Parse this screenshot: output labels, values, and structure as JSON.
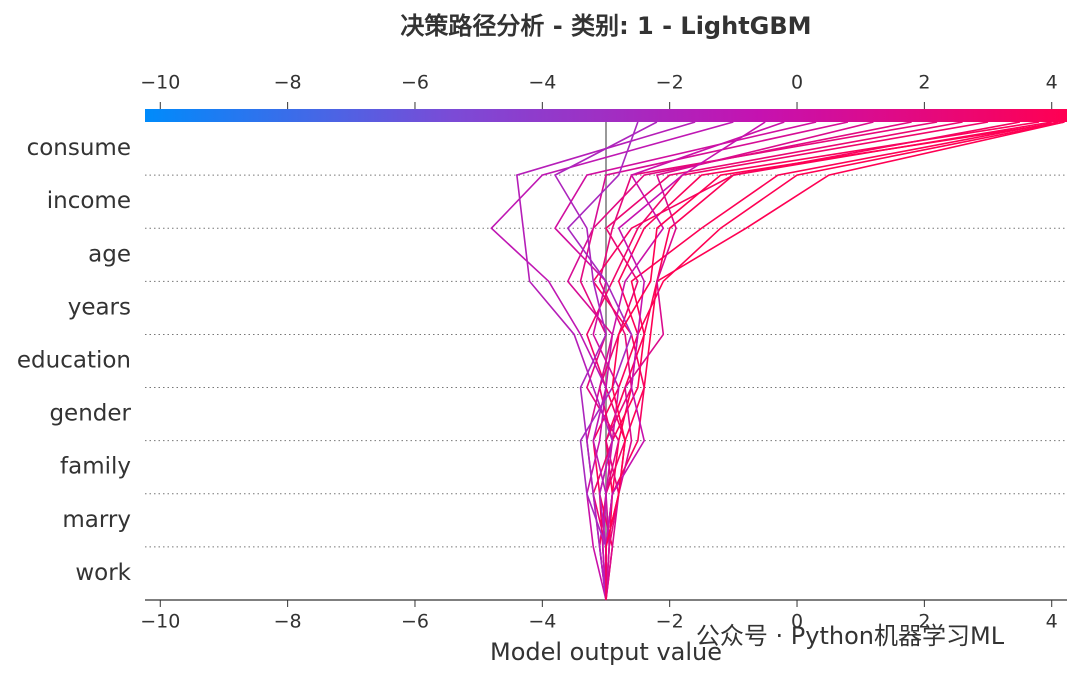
{
  "chart_data": {
    "type": "decision",
    "title": "决策路径分析 - 类别: 1 - LightGBM",
    "x_label": "Model output value",
    "watermark": "公众号 · Python机器学习ML",
    "categories": [
      "consume",
      "income",
      "age",
      "years",
      "education",
      "gender",
      "family",
      "marry",
      "work"
    ],
    "base_value": -3,
    "base_color": "#999999",
    "colormap": [
      "#008bfb",
      "#7b4bd6",
      "#c512b0",
      "#ff0052"
    ],
    "xlim": [
      -10.24,
      4.24
    ],
    "xticks": [
      {
        "value": -10,
        "label": "−10"
      },
      {
        "value": -8,
        "label": "−8"
      },
      {
        "value": -6,
        "label": "−6"
      },
      {
        "value": -4,
        "label": "−4"
      },
      {
        "value": -2,
        "label": "−2"
      },
      0,
      2,
      4
    ],
    "series": [
      {
        "values": [
          4.2,
          0.0,
          -1.2,
          -2.1,
          -2.5,
          -2.6,
          -2.8,
          -2.9,
          -2.95
        ]
      },
      {
        "values": [
          4.2,
          0.5,
          -0.8,
          -2.2,
          -2.3,
          -2.4,
          -2.7,
          -2.8,
          -3.0
        ]
      },
      {
        "values": [
          4.1,
          -0.3,
          -1.5,
          -2.6,
          -2.4,
          -2.5,
          -2.9,
          -3.1,
          -3.05
        ]
      },
      {
        "values": [
          4.0,
          -1.0,
          -2.0,
          -2.2,
          -2.4,
          -2.7,
          -3.0,
          -2.9,
          -3.0
        ]
      },
      {
        "values": [
          3.8,
          -1.5,
          -2.4,
          -2.8,
          -2.5,
          -2.8,
          -3.2,
          -3.1,
          -2.9
        ]
      },
      {
        "values": [
          3.5,
          -1.0,
          -2.6,
          -3.2,
          -2.6,
          -2.4,
          -2.5,
          -2.9,
          -3.0
        ]
      },
      {
        "values": [
          3.0,
          -1.8,
          -2.5,
          -2.9,
          -3.3,
          -3.0,
          -2.7,
          -3.0,
          -3.1
        ]
      },
      {
        "values": [
          2.6,
          -2.0,
          -3.0,
          -2.5,
          -2.8,
          -3.1,
          -2.9,
          -3.2,
          -3.0
        ]
      },
      {
        "values": [
          2.2,
          -2.6,
          -2.9,
          -3.1,
          -2.7,
          -2.6,
          -3.0,
          -2.8,
          -2.95
        ]
      },
      {
        "values": [
          1.8,
          -2.4,
          -3.2,
          -3.4,
          -3.0,
          -3.3,
          -2.8,
          -3.0,
          -3.05
        ]
      },
      {
        "values": [
          1.2,
          -2.2,
          -1.9,
          -2.2,
          -2.1,
          -2.7,
          -2.6,
          -2.8,
          -2.9
        ]
      },
      {
        "values": [
          0.8,
          -3.0,
          -3.2,
          -3.6,
          -2.9,
          -3.1,
          -3.3,
          -3.2,
          -3.1
        ]
      },
      {
        "values": [
          0.3,
          -3.3,
          -3.8,
          -3.0,
          -3.2,
          -2.8,
          -2.9,
          -3.0,
          -2.95
        ]
      },
      {
        "values": [
          -0.2,
          -2.6,
          -2.1,
          -2.7,
          -2.9,
          -3.0,
          -3.1,
          -3.3,
          -3.2
        ]
      },
      {
        "values": [
          -0.5,
          -1.8,
          -2.8,
          -2.4,
          -2.5,
          -2.6,
          -2.4,
          -2.9,
          -3.0
        ]
      },
      {
        "values": [
          -1.0,
          -4.0,
          -4.8,
          -3.9,
          -3.4,
          -3.0,
          -3.2,
          -3.0,
          -3.05
        ]
      },
      {
        "values": [
          -1.6,
          -4.4,
          -4.3,
          -4.2,
          -3.5,
          -3.2,
          -2.9,
          -3.1,
          -3.0
        ]
      },
      {
        "values": [
          -2.2,
          -3.8,
          -3.3,
          -3.2,
          -3.0,
          -3.4,
          -3.3,
          -3.2,
          -3.1
        ]
      },
      {
        "values": [
          -2.5,
          -2.8,
          -3.6,
          -3.0,
          -2.6,
          -2.9,
          -3.4,
          -3.3,
          -3.0
        ]
      },
      {
        "values": [
          4.2,
          -1.2,
          -2.2,
          -2.3,
          -2.8,
          -2.9,
          -2.7,
          -2.8,
          -3.0
        ]
      }
    ]
  }
}
